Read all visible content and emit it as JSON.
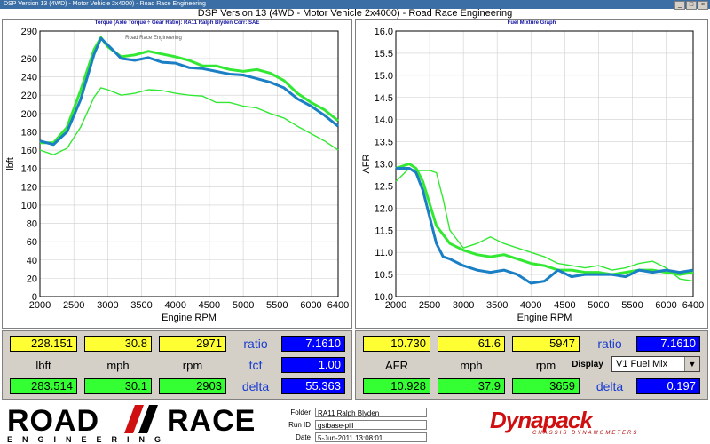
{
  "window": {
    "small_title": "DSP Version 13 (4WD) - Motor Vehicle 2x4000) - Road Race Engineering",
    "main_title": "DSP Version 13 (4WD - Motor Vehicle 2x4000) - Road Race Engineering"
  },
  "torque_panel": {
    "title": "Torque (Axle Torque ÷ Gear Ratio): RA11 Ralph Blyden      Corr: SAE",
    "subtitle": "Road Race Engineering",
    "chart_data": {
      "type": "line",
      "xlabel": "Engine RPM",
      "ylabel": "lbft",
      "xlim": [
        2000,
        6400
      ],
      "ylim": [
        0,
        290
      ],
      "x_ticks": [
        2000,
        2500,
        3000,
        3500,
        4000,
        4500,
        5000,
        5500,
        6000,
        6400
      ],
      "y_ticks": [
        0,
        20,
        40,
        60,
        80,
        100,
        120,
        140,
        160,
        180,
        200,
        220,
        240,
        260,
        290
      ],
      "grid": true,
      "series": [
        {
          "color": "#1a7fc4",
          "x": [
            2000,
            2200,
            2400,
            2600,
            2800,
            2900,
            3000,
            3200,
            3400,
            3600,
            3800,
            4000,
            4200,
            4400,
            4600,
            4800,
            5000,
            5200,
            5400,
            5600,
            5800,
            6000,
            6200,
            6400
          ],
          "y": [
            170,
            166,
            180,
            215,
            265,
            282,
            275,
            260,
            258,
            261,
            256,
            255,
            250,
            249,
            246,
            243,
            242,
            238,
            234,
            228,
            216,
            208,
            198,
            186
          ]
        },
        {
          "color": "#33e833",
          "x": [
            2000,
            2200,
            2400,
            2600,
            2800,
            2900,
            3000,
            3200,
            3400,
            3600,
            3800,
            4000,
            4200,
            4400,
            4600,
            4800,
            5000,
            5200,
            5400,
            5600,
            5800,
            6000,
            6200,
            6400
          ],
          "y": [
            168,
            168,
            185,
            225,
            270,
            283,
            273,
            262,
            264,
            268,
            265,
            262,
            258,
            252,
            252,
            248,
            246,
            248,
            244,
            236,
            222,
            212,
            204,
            192
          ]
        },
        {
          "color": "#33e833",
          "x": [
            2000,
            2200,
            2400,
            2600,
            2800,
            2900,
            3000,
            3200,
            3400,
            3600,
            3800,
            4000,
            4200,
            4400,
            4600,
            4800,
            5000,
            5200,
            5400,
            5600,
            5800,
            6000,
            6200,
            6400
          ],
          "y": [
            160,
            155,
            162,
            185,
            218,
            228,
            226,
            220,
            222,
            226,
            225,
            222,
            220,
            219,
            212,
            212,
            208,
            206,
            200,
            195,
            186,
            178,
            170,
            160
          ]
        }
      ]
    }
  },
  "afr_panel": {
    "title": "Fuel Mixture Graph",
    "chart_data": {
      "type": "line",
      "xlabel": "Engine RPM",
      "ylabel": "AFR",
      "xlim": [
        2000,
        6400
      ],
      "ylim": [
        10.0,
        16.0
      ],
      "x_ticks": [
        2000,
        2500,
        3000,
        3500,
        4000,
        4500,
        5000,
        5500,
        6000,
        6400
      ],
      "y_ticks": [
        10.0,
        10.5,
        11.0,
        11.5,
        12.0,
        12.5,
        13.0,
        13.5,
        14.0,
        14.5,
        15.0,
        15.5,
        16.0
      ],
      "grid": true,
      "series": [
        {
          "color": "#1a7fc4",
          "x": [
            2000,
            2200,
            2300,
            2400,
            2500,
            2600,
            2700,
            2800,
            3000,
            3200,
            3400,
            3600,
            3800,
            4000,
            4200,
            4400,
            4600,
            4800,
            5000,
            5200,
            5400,
            5600,
            5800,
            6000,
            6200,
            6400
          ],
          "y": [
            12.9,
            12.9,
            12.8,
            12.4,
            11.8,
            11.2,
            10.9,
            10.85,
            10.7,
            10.6,
            10.55,
            10.6,
            10.5,
            10.3,
            10.35,
            10.6,
            10.45,
            10.5,
            10.5,
            10.5,
            10.45,
            10.6,
            10.55,
            10.6,
            10.55,
            10.6
          ]
        },
        {
          "color": "#33e833",
          "x": [
            2000,
            2200,
            2300,
            2400,
            2500,
            2600,
            2700,
            2800,
            3000,
            3200,
            3400,
            3600,
            3800,
            4000,
            4200,
            4400,
            4600,
            4800,
            5000,
            5200,
            5400,
            5600,
            5800,
            6000,
            6200,
            6400
          ],
          "y": [
            12.9,
            13.0,
            12.9,
            12.6,
            12.1,
            11.6,
            11.4,
            11.2,
            11.05,
            10.95,
            10.9,
            10.95,
            10.85,
            10.75,
            10.7,
            10.6,
            10.6,
            10.55,
            10.55,
            10.5,
            10.55,
            10.6,
            10.6,
            10.55,
            10.5,
            10.55
          ]
        },
        {
          "color": "#33e833",
          "x": [
            2000,
            2200,
            2300,
            2400,
            2500,
            2600,
            2700,
            2800,
            3000,
            3200,
            3400,
            3600,
            3800,
            4000,
            4200,
            4400,
            4600,
            4800,
            5000,
            5200,
            5400,
            5600,
            5800,
            6000,
            6200,
            6400
          ],
          "y": [
            12.6,
            12.9,
            12.85,
            12.85,
            12.85,
            12.8,
            12.2,
            11.5,
            11.1,
            11.2,
            11.35,
            11.2,
            11.1,
            11.0,
            10.9,
            10.75,
            10.7,
            10.65,
            10.7,
            10.6,
            10.65,
            10.75,
            10.8,
            10.65,
            10.4,
            10.35
          ]
        }
      ]
    }
  },
  "left_readouts": {
    "top": [
      "228.151",
      "30.8",
      "2971"
    ],
    "labels": [
      "lbft",
      "mph",
      "rpm"
    ],
    "bottom": [
      "283.514",
      "30.1",
      "2903"
    ],
    "ratio_label": "ratio",
    "ratio_value": "7.1610",
    "tcf_label": "tcf",
    "tcf_value": "1.00",
    "delta_label": "delta",
    "delta_value": "55.363"
  },
  "right_readouts": {
    "top": [
      "10.730",
      "61.6",
      "5947"
    ],
    "labels": [
      "AFR",
      "mph",
      "rpm"
    ],
    "bottom": [
      "10.928",
      "37.9",
      "3659"
    ],
    "ratio_label": "ratio",
    "ratio_value": "7.1610",
    "display_label": "Display",
    "display_value": "V1 Fuel Mix",
    "delta_label": "delta",
    "delta_value": "0.197"
  },
  "footer": {
    "logo_road": "ROAD",
    "logo_race": "RACE",
    "logo_eng": "ENGINEERING",
    "folder_label": "Folder",
    "folder_value": "RA11 Ralph Blyden",
    "runid_label": "Run ID",
    "runid_value": "gstbase-pill",
    "date_label": "Date",
    "date_value": "5-Jun-2011 13:08:01",
    "brand": "Dynapack",
    "brand_sub": "CHASSIS DYNAMOMETERS"
  },
  "colors": {
    "blue_trace": "#1a7fc4",
    "green_trace": "#33e833",
    "readout_yellow": "#ffff33",
    "readout_green": "#33ff33",
    "readout_blue": "#0000ff"
  }
}
